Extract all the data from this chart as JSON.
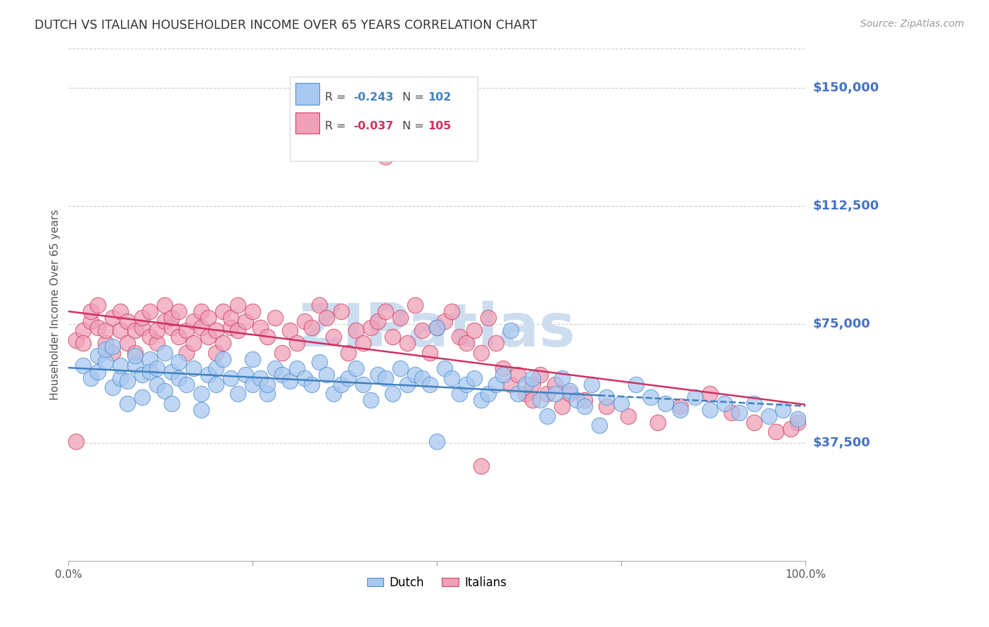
{
  "title": "DUTCH VS ITALIAN HOUSEHOLDER INCOME OVER 65 YEARS CORRELATION CHART",
  "source": "Source: ZipAtlas.com",
  "ylabel": "Householder Income Over 65 years",
  "ytick_labels": [
    "$37,500",
    "$75,000",
    "$112,500",
    "$150,000"
  ],
  "ytick_values": [
    37500,
    75000,
    112500,
    150000
  ],
  "ymin": 0,
  "ymax": 162500,
  "xmin": 0.0,
  "xmax": 1.0,
  "dutch_color": "#a8c8f0",
  "italian_color": "#f0a0b8",
  "dutch_edge_color": "#5090d0",
  "italian_edge_color": "#d04060",
  "dutch_line_color": "#4080c0",
  "italian_line_color": "#d03060",
  "watermark": "ZIPatlas",
  "watermark_color": "#ccddf0",
  "background_color": "#ffffff",
  "grid_color": "#cccccc",
  "title_color": "#333333",
  "axis_label_color": "#555555",
  "right_axis_color": "#4472c4",
  "source_color": "#999999",
  "legend_box_color": "#dddddd",
  "dutch_R": "-0.243",
  "dutch_N": "102",
  "italian_R": "-0.037",
  "italian_N": "105",
  "dutch_scatter_x": [
    0.02,
    0.03,
    0.04,
    0.04,
    0.05,
    0.05,
    0.06,
    0.06,
    0.07,
    0.07,
    0.08,
    0.08,
    0.09,
    0.09,
    0.1,
    0.1,
    0.11,
    0.11,
    0.12,
    0.12,
    0.13,
    0.13,
    0.14,
    0.14,
    0.15,
    0.15,
    0.16,
    0.17,
    0.18,
    0.18,
    0.19,
    0.2,
    0.2,
    0.21,
    0.22,
    0.23,
    0.24,
    0.25,
    0.25,
    0.26,
    0.27,
    0.27,
    0.28,
    0.29,
    0.3,
    0.31,
    0.32,
    0.33,
    0.34,
    0.35,
    0.36,
    0.37,
    0.38,
    0.39,
    0.4,
    0.41,
    0.42,
    0.43,
    0.44,
    0.45,
    0.46,
    0.47,
    0.48,
    0.49,
    0.5,
    0.51,
    0.52,
    0.53,
    0.54,
    0.55,
    0.56,
    0.57,
    0.58,
    0.59,
    0.6,
    0.61,
    0.62,
    0.63,
    0.64,
    0.65,
    0.66,
    0.67,
    0.68,
    0.69,
    0.7,
    0.71,
    0.73,
    0.75,
    0.77,
    0.79,
    0.81,
    0.83,
    0.85,
    0.87,
    0.89,
    0.91,
    0.93,
    0.95,
    0.97,
    0.99,
    0.5,
    0.72
  ],
  "dutch_scatter_y": [
    62000,
    58000,
    65000,
    60000,
    63000,
    67000,
    55000,
    68000,
    58000,
    62000,
    50000,
    57000,
    62000,
    65000,
    52000,
    59000,
    64000,
    60000,
    56000,
    61000,
    54000,
    66000,
    50000,
    60000,
    63000,
    58000,
    56000,
    61000,
    48000,
    53000,
    59000,
    56000,
    61000,
    64000,
    58000,
    53000,
    59000,
    56000,
    64000,
    58000,
    53000,
    56000,
    61000,
    59000,
    57000,
    61000,
    58000,
    56000,
    63000,
    59000,
    53000,
    56000,
    58000,
    61000,
    56000,
    51000,
    59000,
    58000,
    53000,
    61000,
    56000,
    59000,
    58000,
    56000,
    74000,
    61000,
    58000,
    53000,
    56000,
    58000,
    51000,
    53000,
    56000,
    59000,
    73000,
    53000,
    56000,
    58000,
    51000,
    46000,
    53000,
    58000,
    54000,
    51000,
    49000,
    56000,
    52000,
    50000,
    56000,
    52000,
    50000,
    48000,
    52000,
    48000,
    50000,
    47000,
    50000,
    46000,
    48000,
    45000,
    38000,
    43000
  ],
  "italian_scatter_x": [
    0.01,
    0.02,
    0.02,
    0.03,
    0.03,
    0.04,
    0.04,
    0.05,
    0.05,
    0.06,
    0.06,
    0.07,
    0.07,
    0.08,
    0.08,
    0.09,
    0.09,
    0.1,
    0.1,
    0.11,
    0.11,
    0.12,
    0.12,
    0.13,
    0.13,
    0.14,
    0.14,
    0.15,
    0.15,
    0.16,
    0.16,
    0.17,
    0.17,
    0.18,
    0.18,
    0.19,
    0.19,
    0.2,
    0.2,
    0.21,
    0.21,
    0.22,
    0.22,
    0.23,
    0.23,
    0.24,
    0.25,
    0.26,
    0.27,
    0.28,
    0.29,
    0.3,
    0.31,
    0.32,
    0.33,
    0.34,
    0.35,
    0.36,
    0.37,
    0.38,
    0.39,
    0.4,
    0.41,
    0.42,
    0.43,
    0.44,
    0.45,
    0.46,
    0.47,
    0.48,
    0.49,
    0.5,
    0.51,
    0.52,
    0.53,
    0.54,
    0.55,
    0.56,
    0.57,
    0.58,
    0.59,
    0.6,
    0.61,
    0.62,
    0.63,
    0.64,
    0.65,
    0.66,
    0.67,
    0.68,
    0.7,
    0.73,
    0.76,
    0.8,
    0.83,
    0.87,
    0.9,
    0.93,
    0.96,
    0.99,
    0.01,
    0.43,
    0.56,
    0.98,
    0.63
  ],
  "italian_scatter_y": [
    70000,
    73000,
    69000,
    76000,
    79000,
    74000,
    81000,
    69000,
    73000,
    66000,
    77000,
    73000,
    79000,
    69000,
    76000,
    73000,
    66000,
    74000,
    77000,
    79000,
    71000,
    69000,
    73000,
    76000,
    81000,
    74000,
    77000,
    71000,
    79000,
    73000,
    66000,
    69000,
    76000,
    74000,
    79000,
    77000,
    71000,
    73000,
    66000,
    79000,
    69000,
    74000,
    77000,
    73000,
    81000,
    76000,
    79000,
    74000,
    71000,
    77000,
    66000,
    73000,
    69000,
    76000,
    74000,
    81000,
    77000,
    71000,
    79000,
    66000,
    73000,
    69000,
    74000,
    76000,
    79000,
    71000,
    77000,
    69000,
    81000,
    73000,
    66000,
    74000,
    76000,
    79000,
    71000,
    69000,
    73000,
    66000,
    77000,
    69000,
    61000,
    56000,
    59000,
    53000,
    56000,
    59000,
    53000,
    56000,
    49000,
    53000,
    51000,
    49000,
    46000,
    44000,
    49000,
    53000,
    47000,
    44000,
    41000,
    44000,
    38000,
    128000,
    30000,
    42000,
    51000
  ]
}
